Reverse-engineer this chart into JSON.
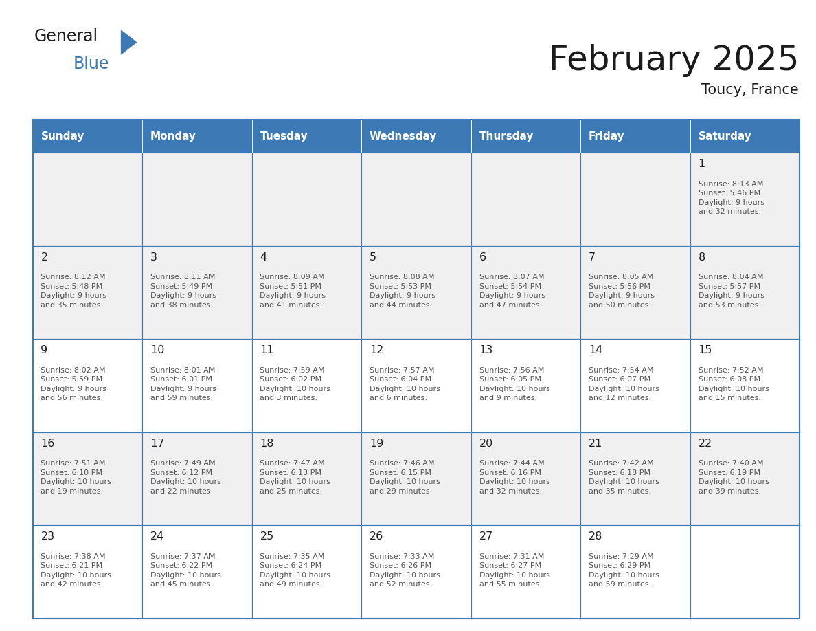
{
  "title": "February 2025",
  "subtitle": "Toucy, France",
  "days_of_week": [
    "Sunday",
    "Monday",
    "Tuesday",
    "Wednesday",
    "Thursday",
    "Friday",
    "Saturday"
  ],
  "header_bg": "#3d7ab5",
  "header_text": "#ffffff",
  "cell_bg_row0": "#f0f0f0",
  "cell_bg_row1": "#ffffff",
  "cell_border": "#3d7ab5",
  "day_number_color": "#222222",
  "info_text_color": "#555555",
  "title_color": "#1a1a1a",
  "calendar_data": [
    [
      null,
      null,
      null,
      null,
      null,
      null,
      {
        "day": "1",
        "sunrise": "8:13 AM",
        "sunset": "5:46 PM",
        "daylight": "9 hours\nand 32 minutes."
      }
    ],
    [
      {
        "day": "2",
        "sunrise": "8:12 AM",
        "sunset": "5:48 PM",
        "daylight": "9 hours\nand 35 minutes."
      },
      {
        "day": "3",
        "sunrise": "8:11 AM",
        "sunset": "5:49 PM",
        "daylight": "9 hours\nand 38 minutes."
      },
      {
        "day": "4",
        "sunrise": "8:09 AM",
        "sunset": "5:51 PM",
        "daylight": "9 hours\nand 41 minutes."
      },
      {
        "day": "5",
        "sunrise": "8:08 AM",
        "sunset": "5:53 PM",
        "daylight": "9 hours\nand 44 minutes."
      },
      {
        "day": "6",
        "sunrise": "8:07 AM",
        "sunset": "5:54 PM",
        "daylight": "9 hours\nand 47 minutes."
      },
      {
        "day": "7",
        "sunrise": "8:05 AM",
        "sunset": "5:56 PM",
        "daylight": "9 hours\nand 50 minutes."
      },
      {
        "day": "8",
        "sunrise": "8:04 AM",
        "sunset": "5:57 PM",
        "daylight": "9 hours\nand 53 minutes."
      }
    ],
    [
      {
        "day": "9",
        "sunrise": "8:02 AM",
        "sunset": "5:59 PM",
        "daylight": "9 hours\nand 56 minutes."
      },
      {
        "day": "10",
        "sunrise": "8:01 AM",
        "sunset": "6:01 PM",
        "daylight": "9 hours\nand 59 minutes."
      },
      {
        "day": "11",
        "sunrise": "7:59 AM",
        "sunset": "6:02 PM",
        "daylight": "10 hours\nand 3 minutes."
      },
      {
        "day": "12",
        "sunrise": "7:57 AM",
        "sunset": "6:04 PM",
        "daylight": "10 hours\nand 6 minutes."
      },
      {
        "day": "13",
        "sunrise": "7:56 AM",
        "sunset": "6:05 PM",
        "daylight": "10 hours\nand 9 minutes."
      },
      {
        "day": "14",
        "sunrise": "7:54 AM",
        "sunset": "6:07 PM",
        "daylight": "10 hours\nand 12 minutes."
      },
      {
        "day": "15",
        "sunrise": "7:52 AM",
        "sunset": "6:08 PM",
        "daylight": "10 hours\nand 15 minutes."
      }
    ],
    [
      {
        "day": "16",
        "sunrise": "7:51 AM",
        "sunset": "6:10 PM",
        "daylight": "10 hours\nand 19 minutes."
      },
      {
        "day": "17",
        "sunrise": "7:49 AM",
        "sunset": "6:12 PM",
        "daylight": "10 hours\nand 22 minutes."
      },
      {
        "day": "18",
        "sunrise": "7:47 AM",
        "sunset": "6:13 PM",
        "daylight": "10 hours\nand 25 minutes."
      },
      {
        "day": "19",
        "sunrise": "7:46 AM",
        "sunset": "6:15 PM",
        "daylight": "10 hours\nand 29 minutes."
      },
      {
        "day": "20",
        "sunrise": "7:44 AM",
        "sunset": "6:16 PM",
        "daylight": "10 hours\nand 32 minutes."
      },
      {
        "day": "21",
        "sunrise": "7:42 AM",
        "sunset": "6:18 PM",
        "daylight": "10 hours\nand 35 minutes."
      },
      {
        "day": "22",
        "sunrise": "7:40 AM",
        "sunset": "6:19 PM",
        "daylight": "10 hours\nand 39 minutes."
      }
    ],
    [
      {
        "day": "23",
        "sunrise": "7:38 AM",
        "sunset": "6:21 PM",
        "daylight": "10 hours\nand 42 minutes."
      },
      {
        "day": "24",
        "sunrise": "7:37 AM",
        "sunset": "6:22 PM",
        "daylight": "10 hours\nand 45 minutes."
      },
      {
        "day": "25",
        "sunrise": "7:35 AM",
        "sunset": "6:24 PM",
        "daylight": "10 hours\nand 49 minutes."
      },
      {
        "day": "26",
        "sunrise": "7:33 AM",
        "sunset": "6:26 PM",
        "daylight": "10 hours\nand 52 minutes."
      },
      {
        "day": "27",
        "sunrise": "7:31 AM",
        "sunset": "6:27 PM",
        "daylight": "10 hours\nand 55 minutes."
      },
      {
        "day": "28",
        "sunrise": "7:29 AM",
        "sunset": "6:29 PM",
        "daylight": "10 hours\nand 59 minutes."
      },
      null
    ]
  ],
  "logo_general_color": "#1a1a1a",
  "logo_blue_color": "#3d7ab5",
  "figsize": [
    11.88,
    9.18
  ],
  "dpi": 100
}
